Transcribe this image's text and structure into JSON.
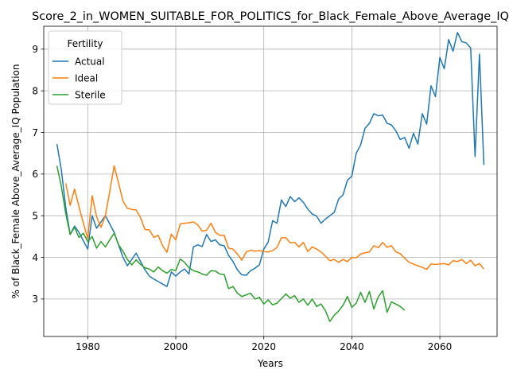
{
  "chart_data": {
    "type": "line",
    "title": "Score_2_in_WOMEN_SUITABLE_FOR_POLITICS_for_Black_Female_Above_Average_IQ",
    "xlabel": "Years",
    "ylabel": "% of Black_Female Above_Average_IQ Population",
    "xlim": [
      1970,
      2073
    ],
    "ylim": [
      2.1,
      9.55
    ],
    "xticks": [
      1980,
      2000,
      2020,
      2040,
      2060
    ],
    "yticks": [
      3,
      4,
      5,
      6,
      7,
      8,
      9
    ],
    "grid": true,
    "legend": {
      "title": "Fertility",
      "placement": "top-left"
    },
    "series": [
      {
        "name": "Actual",
        "color": "#1f77b4",
        "x": [
          1973,
          1974,
          1975,
          1976,
          1977,
          1978,
          1979,
          1980,
          1981,
          1982,
          1983,
          1984,
          1985,
          1986,
          1987,
          1988,
          1989,
          1990,
          1991,
          1992,
          1993,
          1994,
          1995,
          1996,
          1997,
          1998,
          1999,
          2000,
          2001,
          2002,
          2003,
          2004,
          2005,
          2006,
          2007,
          2008,
          2009,
          2010,
          2011,
          2012,
          2013,
          2014,
          2015,
          2016,
          2017,
          2018,
          2019,
          2020,
          2021,
          2022,
          2023,
          2024,
          2025,
          2026,
          2027,
          2028,
          2029,
          2030,
          2031,
          2032,
          2033,
          2034,
          2035,
          2036,
          2037,
          2038,
          2039,
          2040,
          2041,
          2042,
          2043,
          2044,
          2045,
          2046,
          2047,
          2048,
          2049,
          2050,
          2051,
          2052,
          2053,
          2054,
          2055,
          2056,
          2057,
          2058,
          2059,
          2060,
          2061,
          2062,
          2063,
          2064,
          2065,
          2066,
          2067,
          2068,
          2069,
          2070
        ],
        "values": [
          6.72,
          6.1,
          5.2,
          4.55,
          4.75,
          4.6,
          4.4,
          4.2,
          5.0,
          4.7,
          4.85,
          5.0,
          4.8,
          4.6,
          4.3,
          4.0,
          3.8,
          3.95,
          4.1,
          3.9,
          3.7,
          3.55,
          3.48,
          3.42,
          3.36,
          3.3,
          3.65,
          3.55,
          3.65,
          3.72,
          3.6,
          4.25,
          4.3,
          4.26,
          4.55,
          4.38,
          4.42,
          4.3,
          4.28,
          4.05,
          3.9,
          3.7,
          3.58,
          3.57,
          3.68,
          3.74,
          3.82,
          4.2,
          4.37,
          4.88,
          4.82,
          5.38,
          5.22,
          5.46,
          5.34,
          5.43,
          5.32,
          5.16,
          5.04,
          4.99,
          4.82,
          4.92,
          5.0,
          5.08,
          5.4,
          5.5,
          5.85,
          5.95,
          6.5,
          6.7,
          7.1,
          7.22,
          7.45,
          7.4,
          7.42,
          7.22,
          7.18,
          7.04,
          6.83,
          6.88,
          6.62,
          6.98,
          6.72,
          7.45,
          7.2,
          8.12,
          7.86,
          8.8,
          8.53,
          9.23,
          8.95,
          9.4,
          9.18,
          9.15,
          9.03,
          6.42,
          8.88,
          6.22
        ]
      },
      {
        "name": "Ideal",
        "color": "#ff7f0e",
        "x": [
          1975,
          1976,
          1977,
          1978,
          1979,
          1980,
          1981,
          1982,
          1983,
          1984,
          1985,
          1986,
          1987,
          1988,
          1989,
          1990,
          1991,
          1992,
          1993,
          1994,
          1995,
          1996,
          1997,
          1998,
          1999,
          2000,
          2001,
          2002,
          2003,
          2004,
          2005,
          2006,
          2007,
          2008,
          2009,
          2010,
          2011,
          2012,
          2013,
          2014,
          2015,
          2016,
          2017,
          2018,
          2019,
          2020,
          2021,
          2022,
          2023,
          2024,
          2025,
          2026,
          2027,
          2028,
          2029,
          2030,
          2031,
          2032,
          2033,
          2034,
          2035,
          2036,
          2037,
          2038,
          2039,
          2040,
          2041,
          2042,
          2043,
          2044,
          2045,
          2046,
          2047,
          2048,
          2049,
          2050,
          2051,
          2052,
          2053,
          2054,
          2055,
          2056,
          2057,
          2058,
          2059,
          2060,
          2061,
          2062,
          2063,
          2064,
          2065,
          2066,
          2067,
          2068,
          2069,
          2070
        ],
        "values": [
          5.78,
          5.25,
          5.64,
          5.22,
          4.82,
          4.45,
          5.48,
          4.98,
          4.72,
          5.0,
          5.58,
          6.2,
          5.78,
          5.35,
          5.18,
          5.15,
          5.14,
          4.95,
          4.67,
          4.66,
          4.48,
          4.53,
          4.28,
          4.12,
          4.56,
          4.42,
          4.8,
          4.82,
          4.83,
          4.85,
          4.78,
          4.63,
          4.65,
          4.82,
          4.6,
          4.53,
          4.53,
          4.22,
          4.2,
          4.08,
          3.93,
          4.13,
          4.17,
          4.15,
          4.16,
          4.14,
          4.13,
          4.16,
          4.24,
          4.47,
          4.47,
          4.35,
          4.36,
          4.25,
          4.36,
          4.14,
          4.25,
          4.2,
          4.13,
          4.03,
          3.92,
          3.95,
          3.88,
          3.95,
          3.9,
          4.0,
          3.99,
          4.08,
          4.11,
          4.13,
          4.28,
          4.23,
          4.36,
          4.24,
          4.28,
          4.13,
          4.09,
          3.98,
          3.88,
          3.84,
          3.8,
          3.76,
          3.71,
          3.84,
          3.83,
          3.84,
          3.85,
          3.82,
          3.92,
          3.9,
          3.95,
          3.85,
          3.93,
          3.8,
          3.85,
          3.72
        ]
      },
      {
        "name": "Sterile",
        "color": "#2ca02c",
        "x": [
          1973,
          1974,
          1975,
          1976,
          1977,
          1978,
          1979,
          1980,
          1981,
          1982,
          1983,
          1984,
          1985,
          1986,
          1987,
          1988,
          1989,
          1990,
          1991,
          1992,
          1993,
          1994,
          1995,
          1996,
          1997,
          1998,
          1999,
          2000,
          2001,
          2002,
          2003,
          2004,
          2005,
          2006,
          2007,
          2008,
          2009,
          2010,
          2011,
          2012,
          2013,
          2014,
          2015,
          2016,
          2017,
          2018,
          2019,
          2020,
          2021,
          2022,
          2023,
          2024,
          2025,
          2026,
          2027,
          2028,
          2029,
          2030,
          2031,
          2032,
          2033,
          2034,
          2035,
          2036,
          2037,
          2038,
          2039,
          2040,
          2041,
          2042,
          2043,
          2044,
          2045,
          2046,
          2047,
          2048,
          2049,
          2050,
          2051,
          2052
        ],
        "values": [
          6.2,
          5.7,
          5.05,
          4.55,
          4.72,
          4.48,
          4.58,
          4.38,
          4.5,
          4.22,
          4.38,
          4.25,
          4.42,
          4.58,
          4.3,
          4.15,
          3.95,
          3.82,
          3.94,
          3.83,
          3.75,
          3.72,
          3.65,
          3.77,
          3.68,
          3.62,
          3.71,
          3.68,
          3.96,
          3.88,
          3.75,
          3.68,
          3.65,
          3.6,
          3.57,
          3.68,
          3.67,
          3.6,
          3.59,
          3.25,
          3.3,
          3.14,
          3.06,
          3.1,
          3.14,
          3.0,
          3.04,
          2.88,
          2.98,
          2.86,
          2.9,
          3.01,
          3.12,
          3.02,
          3.08,
          2.92,
          3.0,
          2.85,
          3.0,
          2.82,
          2.88,
          2.72,
          2.46,
          2.61,
          2.71,
          2.85,
          3.06,
          2.8,
          2.9,
          3.16,
          2.92,
          3.18,
          2.76,
          3.05,
          3.2,
          2.68,
          2.93,
          2.88,
          2.82,
          2.73
        ]
      }
    ]
  }
}
